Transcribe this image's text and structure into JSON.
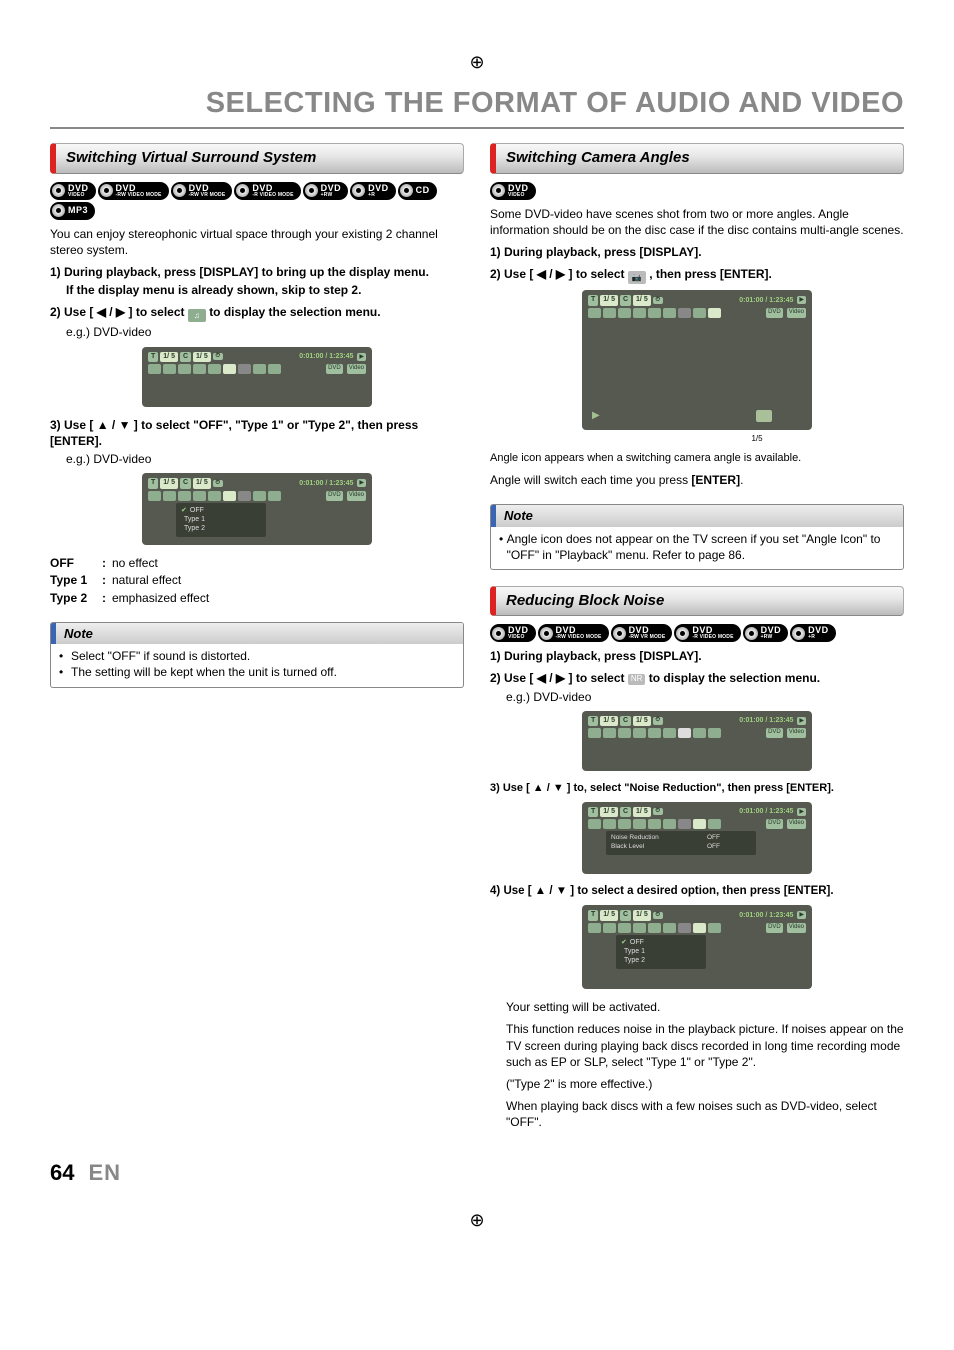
{
  "registration_mark": "⊕",
  "page_title": "SELECTING THE FORMAT OF AUDIO AND VIDEO",
  "page_number": "64",
  "page_lang": "EN",
  "section_virtual": {
    "header": "Switching Virtual Surround System",
    "badges": [
      {
        "main": "DVD",
        "sub": "VIDEO"
      },
      {
        "main": "DVD",
        "sub": "-RW VIDEO MODE"
      },
      {
        "main": "DVD",
        "sub": "-RW VR MODE"
      },
      {
        "main": "DVD",
        "sub": "-R VIDEO MODE"
      },
      {
        "main": "DVD",
        "sub": "+RW"
      },
      {
        "main": "DVD",
        "sub": "+R"
      },
      {
        "main": "CD",
        "sub": ""
      },
      {
        "main": "MP3",
        "sub": ""
      }
    ],
    "intro": "You can enjoy stereophonic virtual space through your existing 2 channel stereo system.",
    "step1_label": "1)",
    "step1_text": "During playback, press [DISPLAY] to bring up the display menu.",
    "step1_extra": "If the display menu is already shown, skip to step 2.",
    "step2_label": "2)",
    "step2_pre": "Use [ ◀ / ▶ ] to select ",
    "step2_post": " to display the selection menu.",
    "step2_eg": "e.g.) DVD-video",
    "step3_label": "3)",
    "step3_text": "Use [ ▲ / ▼ ] to select \"OFF\", \"Type 1\" or \"Type 2\", then press [ENTER].",
    "step3_eg": "e.g.) DVD-video",
    "defs": [
      {
        "key": "OFF",
        "val": "no effect"
      },
      {
        "key": "Type 1",
        "val": "natural effect"
      },
      {
        "key": "Type 2",
        "val": "emphasized effect"
      }
    ],
    "note_title": "Note",
    "note_items": [
      "Select \"OFF\" if sound is distorted.",
      "The setting will be kept when the unit is turned off."
    ]
  },
  "section_camera": {
    "header": "Switching Camera Angles",
    "badges": [
      {
        "main": "DVD",
        "sub": "VIDEO"
      }
    ],
    "intro": "Some DVD-video have scenes shot from two or more angles. Angle information should be on the disc case if the disc contains multi-angle scenes.",
    "step1_label": "1)",
    "step1_text": "During playback, press [DISPLAY].",
    "step2_label": "2)",
    "step2_pre": "Use [ ◀ / ▶ ] to select ",
    "step2_post": " , then press [ENTER].",
    "angle_caption": "1/5",
    "after1": "Angle icon appears when a switching camera angle is available.",
    "after2_pre": "Angle will switch each time you press ",
    "after2_bold": "[ENTER]",
    "after2_post": ".",
    "note_title": "Note",
    "note_items": [
      "Angle icon does not appear on the TV screen if you set \"Angle Icon\" to \"OFF\" in \"Playback\" menu. Refer to page 86."
    ]
  },
  "section_noise": {
    "header": "Reducing Block Noise",
    "badges": [
      {
        "main": "DVD",
        "sub": "VIDEO"
      },
      {
        "main": "DVD",
        "sub": "-RW VIDEO MODE"
      },
      {
        "main": "DVD",
        "sub": "-RW VR MODE"
      },
      {
        "main": "DVD",
        "sub": "-R VIDEO MODE"
      },
      {
        "main": "DVD",
        "sub": "+RW"
      },
      {
        "main": "DVD",
        "sub": "+R"
      }
    ],
    "step1_label": "1)",
    "step1_text": "During playback, press [DISPLAY].",
    "step2_label": "2)",
    "step2_pre": "Use [ ◀ / ▶ ] to select ",
    "step2_icon_text": "NR",
    "step2_post": " to display the selection menu.",
    "step2_eg": "e.g.) DVD-video",
    "step3_label": "3)",
    "step3_text": "Use [ ▲ / ▼ ] to, select \"Noise Reduction\", then press [ENTER].",
    "step4_label": "4)",
    "step4_text": "Use [ ▲ / ▼ ] to select a desired option, then press [ENTER].",
    "after_activated": "Your setting will be activated.",
    "after_para": "This function reduces noise in the playback picture. If noises appear on the TV screen during playing back discs recorded in long time recording mode such as EP or SLP, select \"Type 1\" or \"Type 2\".",
    "after_para2": "(\"Type 2\" is more effective.)",
    "after_para3": "When playing back discs with a few noises such as DVD-video, select \"OFF\"."
  },
  "osd_common": {
    "t_label": "T",
    "c_label": "C",
    "title_count": "1/  5",
    "chap_count": "1/  5",
    "time": "0:01:00 / 1:23:45",
    "arrow_right": "▶",
    "dvd_chip": "DVD",
    "video_chip": "Video",
    "menu_items_type": [
      "OFF",
      "Type 1",
      "Type 2"
    ],
    "menu_items_nr": [
      {
        "l": "Noise Reduction",
        "v": "OFF"
      },
      {
        "l": "Black Level",
        "v": "OFF"
      }
    ],
    "angle_chip": "⦠"
  }
}
